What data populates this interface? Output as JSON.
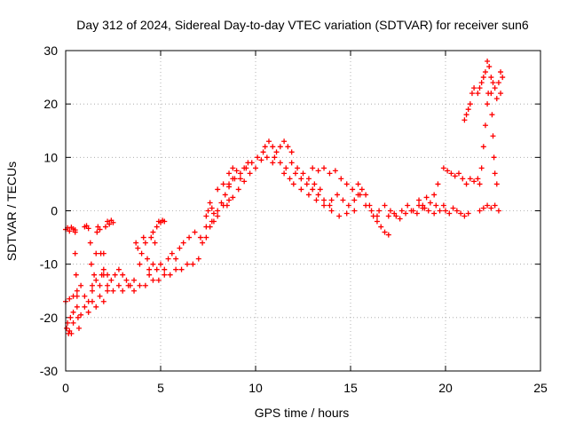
{
  "chart_data": {
    "type": "scatter",
    "title": "Day 312 of 2024, Sidereal Day-to-day VTEC variation (SDTVAR) for receiver sun6",
    "xlabel": "GPS time / hours",
    "ylabel": "SDTVAR / TECUs",
    "xlim": [
      0,
      25
    ],
    "ylim": [
      -30,
      30
    ],
    "xticks": [
      0,
      5,
      10,
      15,
      20,
      25
    ],
    "yticks": [
      -30,
      -20,
      -10,
      0,
      10,
      20,
      30
    ],
    "xtick_labels": [
      "0",
      "5",
      "10",
      "15",
      "20",
      "25"
    ],
    "ytick_labels": [
      "-30",
      "-20",
      "-10",
      "0",
      "10",
      "20",
      "30"
    ],
    "grid": true,
    "marker": "+",
    "series": [
      {
        "name": "sun6",
        "color": "#ff0000",
        "points": [
          [
            0.0,
            -17
          ],
          [
            0.05,
            -22
          ],
          [
            0.1,
            -21
          ],
          [
            0.15,
            -23
          ],
          [
            0.2,
            -22.5
          ],
          [
            0.25,
            -20
          ],
          [
            0.3,
            -23
          ],
          [
            0.4,
            -21
          ],
          [
            0.0,
            -3.5
          ],
          [
            0.1,
            -3.2
          ],
          [
            0.2,
            -3.8
          ],
          [
            0.3,
            -3.1
          ],
          [
            0.4,
            -3.4
          ],
          [
            0.5,
            -4
          ],
          [
            0.5,
            -3.6
          ],
          [
            0.5,
            -8
          ],
          [
            0.55,
            -12
          ],
          [
            0.6,
            -16
          ],
          [
            0.65,
            -20
          ],
          [
            0.7,
            -22
          ],
          [
            0.2,
            -16.5
          ],
          [
            0.4,
            -16
          ],
          [
            0.6,
            -15
          ],
          [
            0.8,
            -14
          ],
          [
            1.0,
            -16
          ],
          [
            1.2,
            -17
          ],
          [
            1.4,
            -15
          ],
          [
            1.6,
            -13
          ],
          [
            1.8,
            -14
          ],
          [
            2.0,
            -12
          ],
          [
            0.4,
            -19
          ],
          [
            0.6,
            -18
          ],
          [
            0.8,
            -19.5
          ],
          [
            1.0,
            -18
          ],
          [
            1.2,
            -19
          ],
          [
            1.4,
            -17
          ],
          [
            1.6,
            -18
          ],
          [
            1.8,
            -16
          ],
          [
            2.0,
            -17
          ],
          [
            2.2,
            -15
          ],
          [
            1.0,
            -3
          ],
          [
            1.1,
            -2.8
          ],
          [
            1.2,
            -3.3
          ],
          [
            1.3,
            -6
          ],
          [
            1.35,
            -10
          ],
          [
            1.4,
            -14
          ],
          [
            1.5,
            -12
          ],
          [
            1.6,
            -8
          ],
          [
            1.65,
            -4
          ],
          [
            1.7,
            -3
          ],
          [
            1.8,
            -3.5
          ],
          [
            1.85,
            -8
          ],
          [
            1.9,
            -12
          ],
          [
            2.0,
            -8
          ],
          [
            2.1,
            -3
          ],
          [
            2.2,
            -2
          ],
          [
            2.3,
            -2.5
          ],
          [
            2.4,
            -1.8
          ],
          [
            2.5,
            -2.2
          ],
          [
            2.0,
            -11
          ],
          [
            2.2,
            -12
          ],
          [
            2.4,
            -13
          ],
          [
            2.6,
            -12
          ],
          [
            2.8,
            -11
          ],
          [
            3.0,
            -12
          ],
          [
            3.2,
            -13
          ],
          [
            3.4,
            -14
          ],
          [
            3.6,
            -13
          ],
          [
            2.2,
            -14
          ],
          [
            2.5,
            -15
          ],
          [
            2.8,
            -14
          ],
          [
            3.0,
            -15
          ],
          [
            3.3,
            -14
          ],
          [
            3.6,
            -15
          ],
          [
            3.9,
            -14
          ],
          [
            4.2,
            -14
          ],
          [
            3.7,
            -6
          ],
          [
            3.8,
            -7
          ],
          [
            3.9,
            -10
          ],
          [
            4.0,
            -8
          ],
          [
            4.1,
            -5
          ],
          [
            4.2,
            -6
          ],
          [
            4.3,
            -9
          ],
          [
            4.4,
            -12
          ],
          [
            4.5,
            -5
          ],
          [
            4.6,
            -4
          ],
          [
            4.7,
            -6
          ],
          [
            4.8,
            -3
          ],
          [
            4.9,
            -2
          ],
          [
            5.0,
            -2.2
          ],
          [
            5.1,
            -1.8
          ],
          [
            5.2,
            -2
          ],
          [
            4.4,
            -11
          ],
          [
            4.6,
            -10
          ],
          [
            4.8,
            -11
          ],
          [
            5.0,
            -10
          ],
          [
            5.2,
            -11
          ],
          [
            5.4,
            -9
          ],
          [
            5.6,
            -8
          ],
          [
            5.8,
            -9
          ],
          [
            6.0,
            -7
          ],
          [
            4.6,
            -13
          ],
          [
            4.9,
            -13
          ],
          [
            5.2,
            -12
          ],
          [
            5.5,
            -12
          ],
          [
            5.8,
            -11
          ],
          [
            6.1,
            -11
          ],
          [
            6.4,
            -10
          ],
          [
            6.7,
            -10
          ],
          [
            7.0,
            -9
          ],
          [
            6.2,
            -6
          ],
          [
            6.5,
            -5
          ],
          [
            6.8,
            -4
          ],
          [
            7.1,
            -5
          ],
          [
            7.4,
            -3
          ],
          [
            7.7,
            -2
          ],
          [
            8.0,
            -1
          ],
          [
            8.3,
            1
          ],
          [
            8.6,
            2
          ],
          [
            7.2,
            -6
          ],
          [
            7.4,
            -5
          ],
          [
            7.6,
            -3
          ],
          [
            7.8,
            -2
          ],
          [
            8.0,
            0
          ],
          [
            8.2,
            1.5
          ],
          [
            8.4,
            3
          ],
          [
            8.6,
            5
          ],
          [
            8.8,
            6
          ],
          [
            7.4,
            -1
          ],
          [
            7.5,
            0
          ],
          [
            7.6,
            1.5
          ],
          [
            7.7,
            0.5
          ],
          [
            7.8,
            -0.5
          ],
          [
            8.0,
            4
          ],
          [
            8.3,
            5
          ],
          [
            8.6,
            4.5
          ],
          [
            8.9,
            6
          ],
          [
            9.2,
            7
          ],
          [
            9.5,
            8
          ],
          [
            9.8,
            9
          ],
          [
            10.1,
            10
          ],
          [
            10.4,
            11
          ],
          [
            8.5,
            1
          ],
          [
            8.8,
            2.5
          ],
          [
            9.1,
            4
          ],
          [
            9.4,
            5.5
          ],
          [
            9.7,
            7
          ],
          [
            10.0,
            8
          ],
          [
            10.3,
            9.5
          ],
          [
            10.6,
            10
          ],
          [
            10.9,
            9
          ],
          [
            8.6,
            7
          ],
          [
            8.8,
            8
          ],
          [
            9.0,
            7.5
          ],
          [
            9.2,
            6
          ],
          [
            9.4,
            8
          ],
          [
            9.6,
            9
          ],
          [
            10.5,
            12
          ],
          [
            10.7,
            13
          ],
          [
            10.9,
            12
          ],
          [
            11.1,
            11
          ],
          [
            11.3,
            12
          ],
          [
            11.5,
            13
          ],
          [
            11.7,
            12
          ],
          [
            11.9,
            11
          ],
          [
            11.0,
            10
          ],
          [
            11.3,
            9
          ],
          [
            11.6,
            8
          ],
          [
            11.9,
            9
          ],
          [
            12.2,
            8
          ],
          [
            12.5,
            7
          ],
          [
            12.8,
            6
          ],
          [
            13.1,
            5
          ],
          [
            13.4,
            4
          ],
          [
            11.5,
            7
          ],
          [
            11.8,
            6
          ],
          [
            12.1,
            7
          ],
          [
            12.4,
            6
          ],
          [
            12.7,
            5
          ],
          [
            13.0,
            4
          ],
          [
            13.3,
            3
          ],
          [
            13.6,
            2
          ],
          [
            13.9,
            1
          ],
          [
            12.0,
            5
          ],
          [
            12.4,
            4
          ],
          [
            12.8,
            3
          ],
          [
            13.2,
            2
          ],
          [
            13.6,
            1
          ],
          [
            14.0,
            0
          ],
          [
            14.4,
            -1
          ],
          [
            14.8,
            -0.5
          ],
          [
            15.2,
            0
          ],
          [
            13.0,
            8
          ],
          [
            13.3,
            7.5
          ],
          [
            13.6,
            8
          ],
          [
            13.9,
            7
          ],
          [
            14.2,
            7.5
          ],
          [
            14.5,
            6
          ],
          [
            14.8,
            5
          ],
          [
            15.1,
            4
          ],
          [
            15.4,
            3
          ],
          [
            14.0,
            2
          ],
          [
            14.3,
            3
          ],
          [
            14.6,
            2
          ],
          [
            14.9,
            1
          ],
          [
            15.2,
            2
          ],
          [
            15.5,
            3
          ],
          [
            15.8,
            1
          ],
          [
            16.1,
            0
          ],
          [
            16.4,
            -1
          ],
          [
            15.4,
            5
          ],
          [
            15.6,
            4
          ],
          [
            15.8,
            3
          ],
          [
            16.0,
            1
          ],
          [
            16.2,
            -1
          ],
          [
            16.4,
            -2
          ],
          [
            16.6,
            -3
          ],
          [
            16.8,
            -4
          ],
          [
            17.0,
            -4.5
          ],
          [
            16.5,
            0
          ],
          [
            16.8,
            1
          ],
          [
            17.1,
            0
          ],
          [
            17.4,
            -1
          ],
          [
            17.7,
            0
          ],
          [
            18.0,
            1
          ],
          [
            18.3,
            0
          ],
          [
            18.6,
            1
          ],
          [
            18.9,
            0.5
          ],
          [
            17.0,
            -1
          ],
          [
            17.3,
            -0.5
          ],
          [
            17.6,
            -1.5
          ],
          [
            17.9,
            -0.5
          ],
          [
            18.2,
            0
          ],
          [
            18.5,
            -0.5
          ],
          [
            18.8,
            0.5
          ],
          [
            19.1,
            0
          ],
          [
            19.4,
            -0.5
          ],
          [
            18.6,
            2
          ],
          [
            18.8,
            1
          ],
          [
            19.0,
            2.5
          ],
          [
            19.2,
            1.5
          ],
          [
            19.4,
            3
          ],
          [
            19.6,
            5
          ],
          [
            19.5,
            1
          ],
          [
            19.7,
            0
          ],
          [
            19.9,
            1
          ],
          [
            20.0,
            0
          ],
          [
            20.2,
            -0.5
          ],
          [
            20.4,
            0.5
          ],
          [
            20.6,
            0
          ],
          [
            20.8,
            -0.5
          ],
          [
            21.0,
            -1
          ],
          [
            21.2,
            -0.5
          ],
          [
            19.9,
            8
          ],
          [
            20.1,
            7.5
          ],
          [
            20.3,
            7
          ],
          [
            20.5,
            6.5
          ],
          [
            20.7,
            7
          ],
          [
            20.9,
            6
          ],
          [
            21.1,
            5
          ],
          [
            21.3,
            6
          ],
          [
            21.5,
            5.5
          ],
          [
            21.7,
            6
          ],
          [
            21.0,
            17
          ],
          [
            21.1,
            18
          ],
          [
            21.2,
            19
          ],
          [
            21.3,
            20
          ],
          [
            21.4,
            22
          ],
          [
            21.5,
            23
          ],
          [
            21.7,
            22
          ],
          [
            21.8,
            23
          ],
          [
            21.9,
            24
          ],
          [
            22.0,
            25
          ],
          [
            22.1,
            26
          ],
          [
            22.2,
            28
          ],
          [
            22.3,
            27
          ],
          [
            22.4,
            25
          ],
          [
            22.5,
            24
          ],
          [
            21.8,
            5
          ],
          [
            21.9,
            8
          ],
          [
            22.0,
            12
          ],
          [
            22.1,
            16
          ],
          [
            22.2,
            20
          ],
          [
            22.25,
            22
          ],
          [
            22.4,
            22
          ],
          [
            22.45,
            18
          ],
          [
            22.5,
            14
          ],
          [
            22.55,
            10
          ],
          [
            22.6,
            7
          ],
          [
            22.7,
            5
          ],
          [
            22.6,
            23
          ],
          [
            22.7,
            21
          ],
          [
            22.8,
            24
          ],
          [
            22.9,
            22
          ],
          [
            23.0,
            25
          ],
          [
            22.9,
            26
          ],
          [
            21.8,
            0
          ],
          [
            22.0,
            0.5
          ],
          [
            22.2,
            1
          ],
          [
            22.4,
            0.5
          ],
          [
            22.6,
            1
          ],
          [
            22.8,
            0
          ]
        ]
      }
    ]
  }
}
